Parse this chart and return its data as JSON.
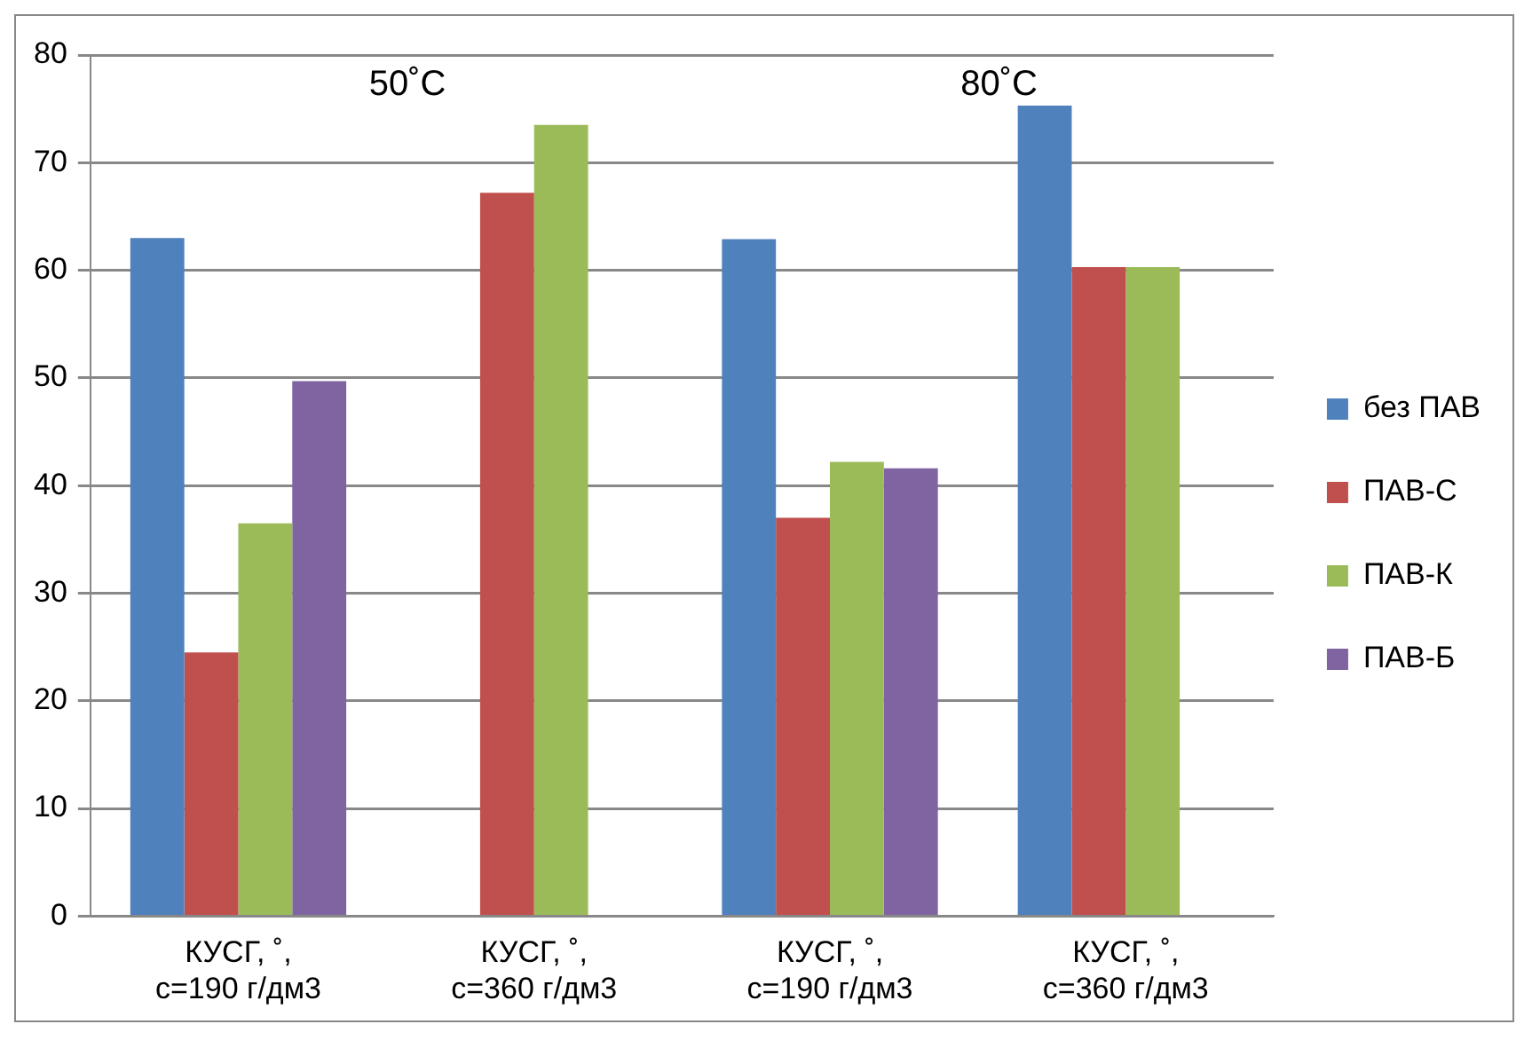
{
  "chart_data": {
    "type": "bar",
    "categories": [
      "КУСГ, ˚,\nс=190 г/дм3",
      "КУСГ, ˚,\nс=360 г/дм3",
      "КУСГ, ˚,\nс=190 г/дм3",
      "КУСГ, ˚,\nс=360 г/дм3"
    ],
    "series": [
      {
        "name": "без ПАВ",
        "color": "#4f81bd",
        "values": [
          63,
          null,
          62.9,
          75.3
        ]
      },
      {
        "name": "ПАВ-С",
        "color": "#c0504d",
        "values": [
          24.5,
          67.2,
          37,
          60.3
        ]
      },
      {
        "name": "ПАВ-К",
        "color": "#9bbb59",
        "values": [
          36.5,
          73.5,
          42.2,
          60.3
        ]
      },
      {
        "name": "ПАВ-Б",
        "color": "#8064a2",
        "values": [
          49.7,
          null,
          41.6,
          null
        ]
      }
    ],
    "ylim": [
      0,
      80
    ],
    "yticks": [
      0,
      10,
      20,
      30,
      40,
      50,
      60,
      70,
      80
    ],
    "grid": "y",
    "legend": "right",
    "annotations": [
      "50˚C",
      "80˚C"
    ]
  }
}
